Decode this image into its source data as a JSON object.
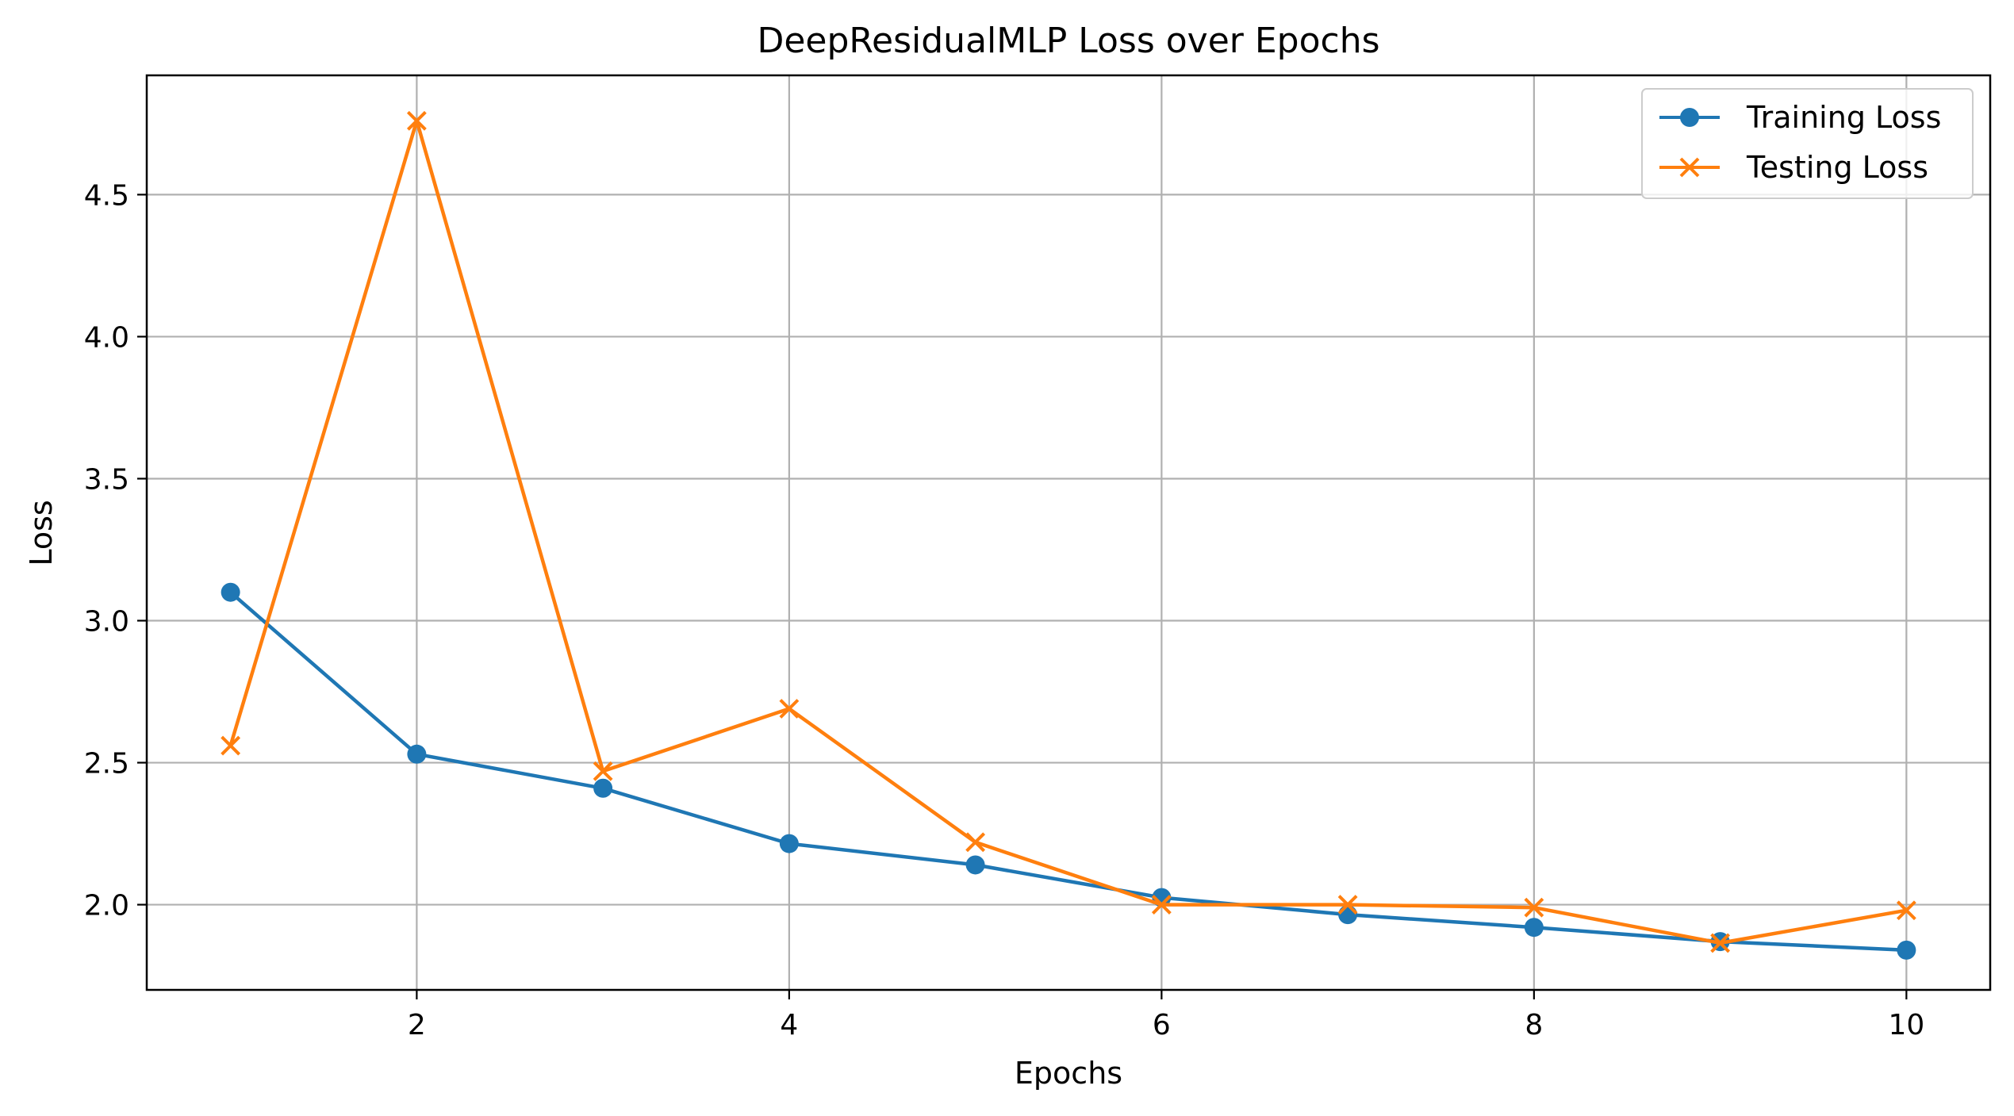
{
  "chart_data": {
    "type": "line",
    "title": "DeepResidualMLP Loss over Epochs",
    "xlabel": "Epochs",
    "ylabel": "Loss",
    "x": [
      1,
      2,
      3,
      4,
      5,
      6,
      7,
      8,
      9,
      10
    ],
    "xlim": [
      0.55,
      10.45
    ],
    "ylim": [
      1.7,
      4.92
    ],
    "xticks": [
      2,
      4,
      6,
      8,
      10
    ],
    "xtick_labels": [
      "2",
      "4",
      "6",
      "8",
      "10"
    ],
    "yticks": [
      2.0,
      2.5,
      3.0,
      3.5,
      4.0,
      4.5
    ],
    "ytick_labels": [
      "2.0",
      "2.5",
      "3.0",
      "3.5",
      "4.0",
      "4.5"
    ],
    "grid": true,
    "legend_position": "top-right",
    "series": [
      {
        "name": "Training Loss",
        "color": "#1f77b4",
        "marker": "circle",
        "values": [
          3.1,
          2.53,
          2.41,
          2.215,
          2.14,
          2.025,
          1.965,
          1.92,
          1.87,
          1.84
        ]
      },
      {
        "name": "Testing Loss",
        "color": "#ff7f0e",
        "marker": "x",
        "values": [
          2.56,
          4.76,
          2.47,
          2.69,
          2.22,
          2.0,
          2.0,
          1.99,
          1.865,
          1.98
        ]
      }
    ]
  }
}
